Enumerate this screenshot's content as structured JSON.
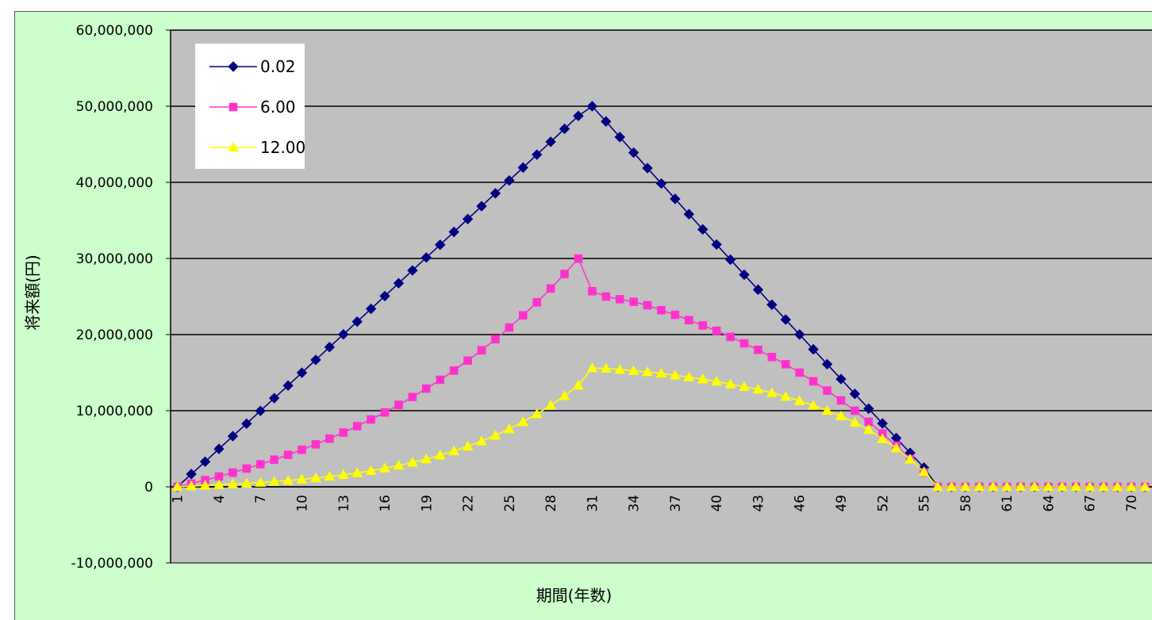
{
  "chart_data": {
    "type": "line",
    "title": "",
    "xlabel": "期間(年数)",
    "ylabel": "将来額(円)",
    "ylim": [
      -10000000,
      60000000
    ],
    "y_ticks": [
      "60,000,000",
      "50,000,000",
      "40,000,000",
      "30,000,000",
      "20,000,000",
      "10,000,000",
      "0",
      "-10,000,000"
    ],
    "x": [
      1,
      2,
      3,
      4,
      5,
      6,
      7,
      8,
      9,
      10,
      11,
      12,
      13,
      14,
      15,
      16,
      17,
      18,
      19,
      20,
      21,
      22,
      23,
      24,
      25,
      26,
      27,
      28,
      29,
      30,
      31,
      32,
      33,
      34,
      35,
      36,
      37,
      38,
      39,
      40,
      41,
      42,
      43,
      44,
      45,
      46,
      47,
      48,
      49,
      50,
      51,
      52,
      53,
      54,
      55,
      56,
      57,
      58,
      59,
      60,
      61,
      62,
      63,
      64,
      65,
      66,
      67,
      68,
      69,
      70,
      71
    ],
    "x_tick_labels": [
      "1",
      "4",
      "7",
      "10",
      "13",
      "16",
      "19",
      "22",
      "25",
      "28",
      "31",
      "34",
      "37",
      "40",
      "43",
      "46",
      "49",
      "52",
      "55",
      "58",
      "61",
      "64",
      "67",
      "70"
    ],
    "grid": "horizontal major gridlines",
    "legend_position": "top-left",
    "series": [
      {
        "name": "0.02",
        "color": "#000080",
        "marker": "diamond",
        "values": [
          0,
          1670000,
          3300000,
          4980000,
          6650000,
          8300000,
          9980000,
          11650000,
          13300000,
          14990000,
          16670000,
          18350000,
          20030000,
          21700000,
          23380000,
          25060000,
          26750000,
          28430000,
          30120000,
          31800000,
          33490000,
          35180000,
          36870000,
          38560000,
          40250000,
          41940000,
          43640000,
          45330000,
          47030000,
          48730000,
          50000000,
          48000000,
          45950000,
          43900000,
          41870000,
          39850000,
          37830000,
          35820000,
          33820000,
          31830000,
          29850000,
          27870000,
          25900000,
          23930000,
          21970000,
          20010000,
          18060000,
          16110000,
          14160000,
          12210000,
          10270000,
          8330000,
          6400000,
          4460000,
          2530000,
          0,
          0,
          0,
          0,
          0,
          0,
          0,
          0,
          0,
          0,
          0,
          0,
          0,
          0,
          0,
          0
        ]
      },
      {
        "name": "6.00",
        "color": "#ff33cc",
        "marker": "square",
        "values": [
          0,
          420000,
          880000,
          1350000,
          1860000,
          2400000,
          2970000,
          3570000,
          4200000,
          4870000,
          5580000,
          6330000,
          7120000,
          7960000,
          8840000,
          9770000,
          10760000,
          11800000,
          12900000,
          14060000,
          15280000,
          16580000,
          17940000,
          19390000,
          20920000,
          22530000,
          24240000,
          26050000,
          27960000,
          29980000,
          25700000,
          25000000,
          24650000,
          24300000,
          23850000,
          23200000,
          22600000,
          21900000,
          21200000,
          20500000,
          19700000,
          18850000,
          18000000,
          17050000,
          16100000,
          15000000,
          13850000,
          12650000,
          11350000,
          10000000,
          8550000,
          7000000,
          5400000,
          3650000,
          1880000,
          0,
          0,
          0,
          0,
          0,
          0,
          0,
          0,
          0,
          0,
          0,
          0,
          0,
          0,
          0,
          0
        ]
      },
      {
        "name": "12.00",
        "color": "#ffff00",
        "marker": "triangle",
        "values": [
          0,
          100000,
          180000,
          260000,
          350000,
          450000,
          560000,
          680000,
          820000,
          980000,
          1160000,
          1360000,
          1580000,
          1830000,
          2120000,
          2440000,
          2800000,
          3200000,
          3650000,
          4150000,
          4700000,
          5320000,
          6000000,
          6760000,
          7600000,
          8540000,
          9570000,
          10700000,
          11950000,
          13330000,
          15600000,
          15550000,
          15400000,
          15250000,
          15100000,
          14900000,
          14650000,
          14400000,
          14150000,
          13850000,
          13500000,
          13150000,
          12800000,
          12350000,
          11850000,
          11300000,
          10700000,
          10000000,
          9300000,
          8450000,
          7500000,
          6300000,
          5100000,
          3600000,
          1950000,
          0,
          0,
          0,
          0,
          0,
          0,
          0,
          0,
          0,
          0,
          0,
          0,
          0,
          0,
          0,
          0
        ]
      }
    ]
  }
}
